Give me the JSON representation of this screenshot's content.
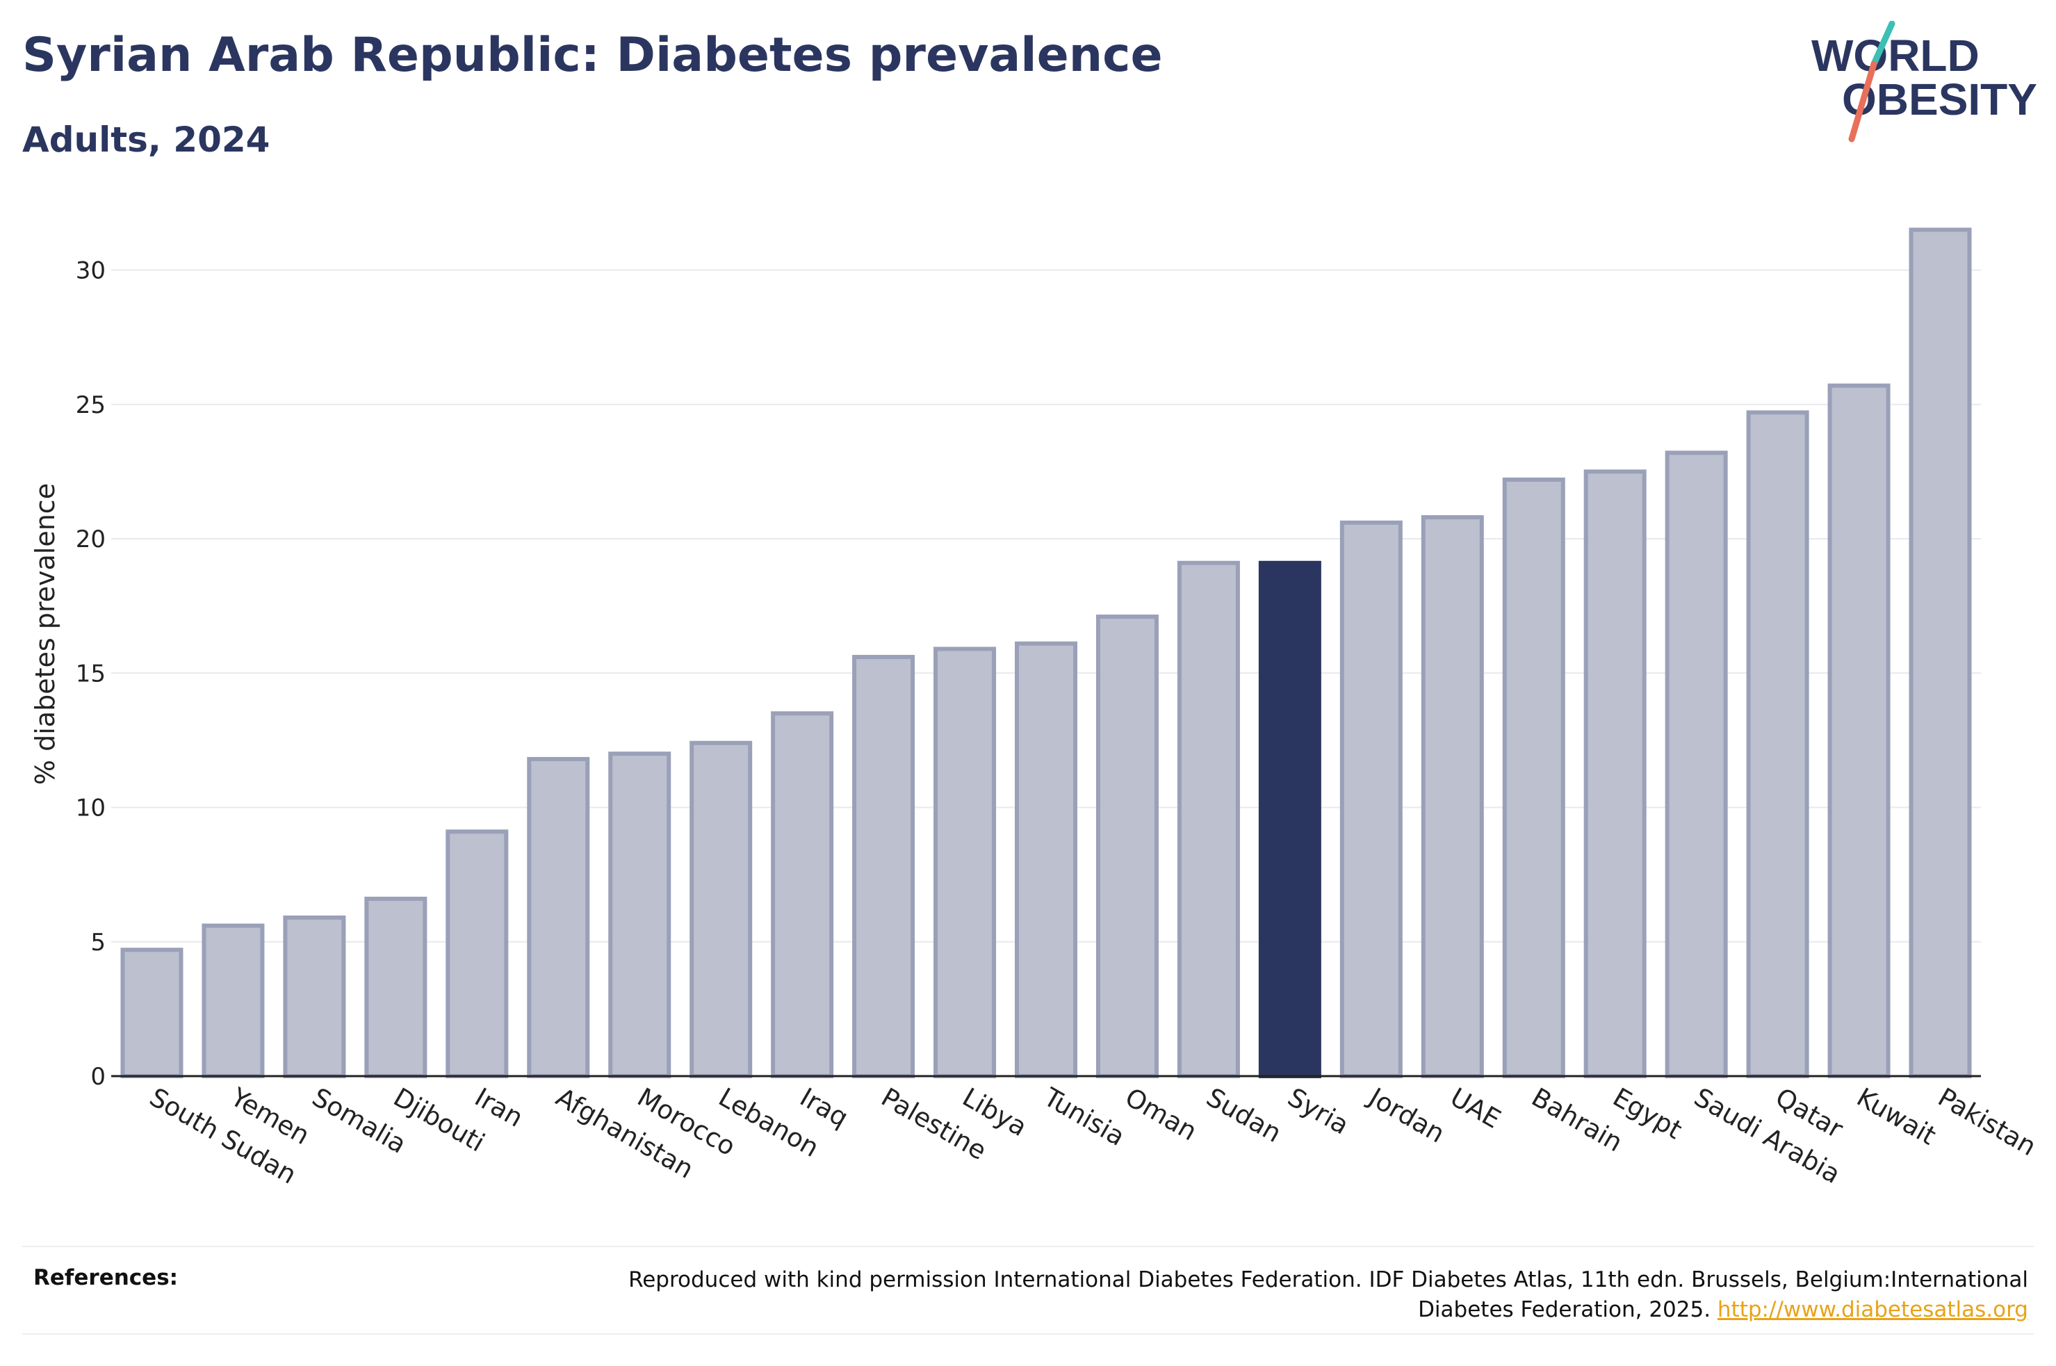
{
  "header": {
    "title": "Syrian Arab Republic: Diabetes prevalence",
    "subtitle": "Adults, 2024"
  },
  "logo": {
    "line1": "WORLD",
    "line2": "OBESITY",
    "colors": {
      "text": "#2b3660",
      "slash_top": "#3cbfb4",
      "slash_bottom": "#e8705a"
    }
  },
  "chart_data": {
    "type": "bar",
    "ylabel": "% diabetes prevalence",
    "xlabel": "",
    "ylim": [
      0,
      32.5
    ],
    "yticks": [
      0,
      5,
      10,
      15,
      20,
      25,
      30
    ],
    "grid": true,
    "highlight": "Syria",
    "colors": {
      "bar": "#bcc0cf",
      "bar_border": "#9aa0b8",
      "highlight": "#2b3660",
      "grid": "#e8e9ee",
      "axis": "#222222"
    },
    "categories": [
      "South Sudan",
      "Yemen",
      "Somalia",
      "Djibouti",
      "Iran",
      "Afghanistan",
      "Morocco",
      "Lebanon",
      "Iraq",
      "Palestine",
      "Libya",
      "Tunisia",
      "Oman",
      "Sudan",
      "Syria",
      "Jordan",
      "UAE",
      "Bahrain",
      "Egypt",
      "Saudi Arabia",
      "Qatar",
      "Kuwait",
      "Pakistan"
    ],
    "values": [
      4.7,
      5.6,
      5.9,
      6.6,
      9.1,
      11.8,
      12.0,
      12.4,
      13.5,
      15.6,
      15.9,
      16.1,
      17.1,
      19.1,
      19.1,
      20.6,
      20.8,
      22.2,
      22.5,
      23.2,
      24.7,
      25.7,
      31.5
    ]
  },
  "references": {
    "label": "References:",
    "text": "Reproduced with kind permission International Diabetes Federation. IDF Diabetes Atlas, 11th edn. Brussels, Belgium:International Diabetes Federation, 2025.",
    "link": "http://www.diabetesatlas.org"
  }
}
